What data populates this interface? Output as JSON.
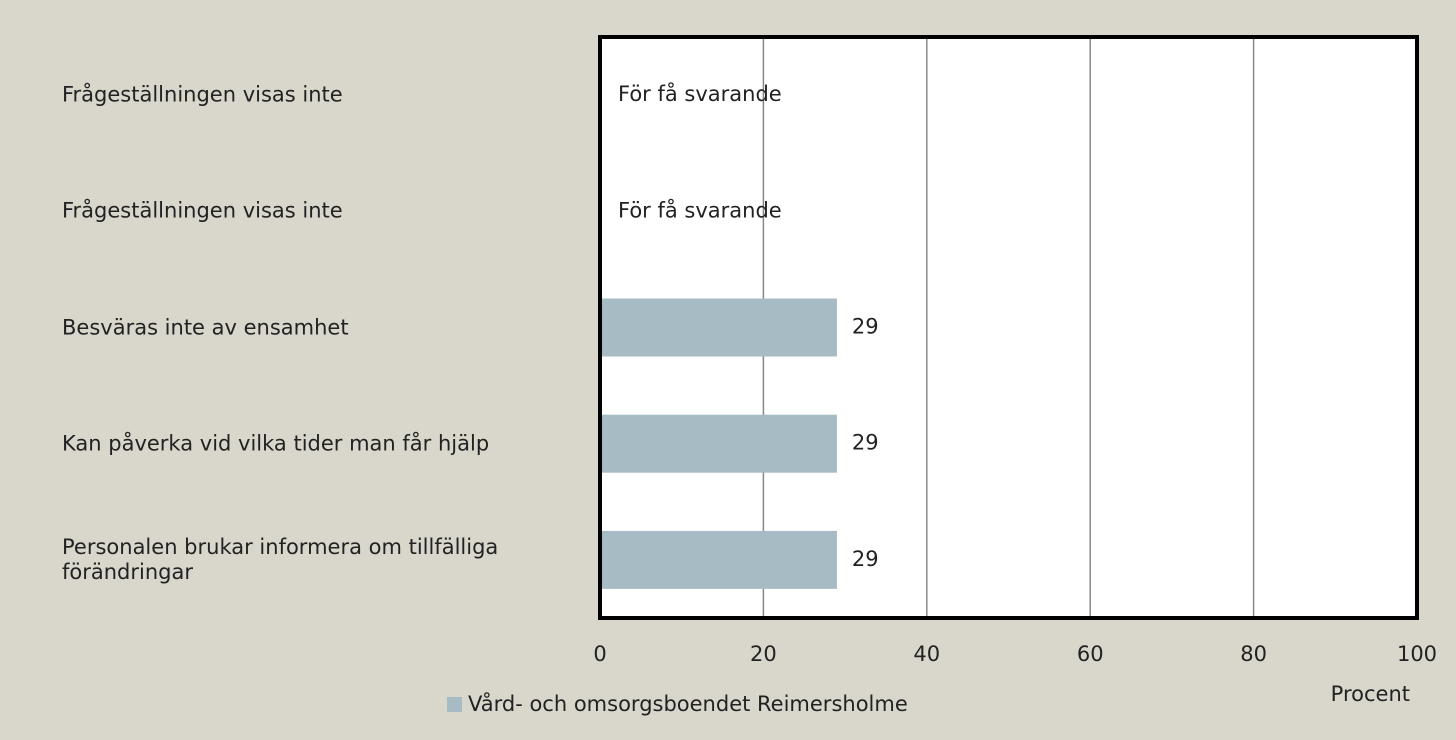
{
  "chart_data": {
    "type": "barh",
    "categories": [
      "Frågeställningen visas inte",
      "Frågeställningen visas inte",
      "Besväras inte av ensamhet",
      "Kan påverka vid vilka tider man får hjälp",
      "Personalen brukar informera om tillfälliga förändringar"
    ],
    "series": [
      {
        "name": "Vård- och omsorgsboendet Reimersholme",
        "color": "#a7bbc4",
        "values": [
          null,
          null,
          29,
          29,
          29
        ],
        "value_labels": [
          "För få svarande",
          "För få svarande",
          "29",
          "29",
          "29"
        ]
      }
    ],
    "xlabel": "Procent",
    "xlim": [
      0,
      100
    ],
    "xticks": [
      0,
      20,
      40,
      60,
      80,
      100
    ],
    "grid": true
  }
}
